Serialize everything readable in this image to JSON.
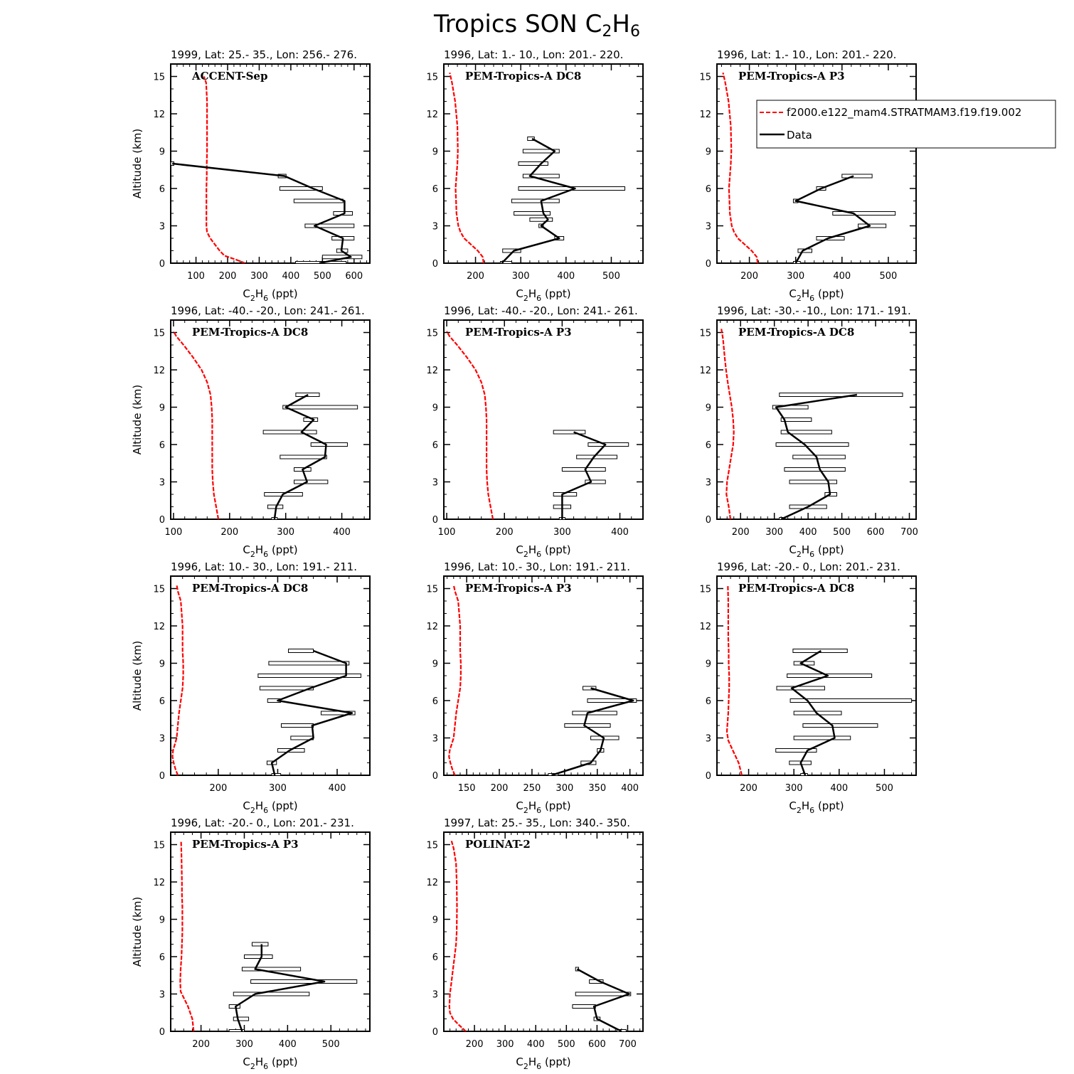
{
  "figure": {
    "title": "Tropics SON C",
    "title_sub_1": "2",
    "title_mid": "H",
    "title_sub_2": "6"
  },
  "axis_labels": {
    "ylabel": "Altitude (km)",
    "xlabel_pre": "C",
    "xlabel_sub_1": "2",
    "xlabel_mid": "H",
    "xlabel_sub_2": "6",
    "xlabel_post": " (ppt)"
  },
  "legend": {
    "placement": "upper-right of panel 3",
    "entries": [
      {
        "label": "f2000.e122_mam4.STRATMAM3.f19.f19.002",
        "color": "#ff0000",
        "style": "dashed"
      },
      {
        "label": "Data",
        "color": "#000000",
        "style": "solid"
      }
    ]
  },
  "chart_data": [
    {
      "type": "line",
      "subtitle": "1999, Lat: 25.- 35., Lon: 256.- 276.",
      "campaign": "ACCENT-Sep",
      "xlim": [
        20,
        650
      ],
      "ylim": [
        0,
        16
      ],
      "xticks": [
        100,
        200,
        300,
        400,
        500,
        600
      ],
      "yticks": [
        0,
        3,
        6,
        9,
        12,
        15
      ],
      "model": {
        "x": [
          255,
          225,
          190,
          175,
          160,
          145,
          135,
          133,
          133,
          133,
          133,
          134,
          134,
          135,
          135,
          135,
          132,
          125
        ],
        "y": [
          0,
          0.3,
          0.6,
          1,
          1.5,
          2,
          2.5,
          3,
          4,
          5,
          6,
          7,
          8,
          9,
          11,
          13,
          14.5,
          15
        ]
      },
      "data": {
        "y": [
          0,
          0.5,
          1,
          2,
          3,
          4,
          5,
          6,
          7,
          8
        ],
        "x": [
          490,
          590,
          560,
          565,
          475,
          570,
          570,
          470,
          380,
          25
        ],
        "lo": [
          415,
          500,
          545,
          530,
          445,
          535,
          410,
          365,
          360,
          20
        ],
        "hi": [
          575,
          625,
          580,
          600,
          600,
          595,
          565,
          500,
          385,
          30
        ]
      }
    },
    {
      "type": "line",
      "subtitle": "1996, Lat: 1.- 10., Lon: 201.- 220.",
      "campaign": "PEM-Tropics-A DC8",
      "xlim": [
        130,
        570
      ],
      "ylim": [
        0,
        16
      ],
      "xticks": [
        200,
        300,
        400,
        500
      ],
      "yticks": [
        0,
        3,
        6,
        9,
        12,
        15
      ],
      "model": {
        "x": [
          218,
          216,
          205,
          190,
          175,
          167,
          162,
          160,
          158,
          157,
          156,
          158,
          160,
          161,
          160,
          155,
          148,
          143
        ],
        "y": [
          0,
          0.5,
          1,
          1.5,
          2,
          2.5,
          3,
          3.5,
          4,
          5,
          6,
          7,
          8,
          9,
          11,
          13,
          14.5,
          15.3
        ]
      },
      "data": {
        "y": [
          0,
          1,
          2,
          3,
          3.5,
          4,
          5,
          6,
          7,
          8,
          9,
          10
        ],
        "x": [
          258,
          285,
          385,
          345,
          360,
          350,
          345,
          420,
          320,
          345,
          375,
          325
        ],
        "lo": [
          255,
          260,
          375,
          340,
          320,
          285,
          280,
          295,
          305,
          295,
          305,
          315
        ],
        "hi": [
          280,
          300,
          395,
          350,
          370,
          365,
          385,
          530,
          385,
          360,
          385,
          330
        ]
      }
    },
    {
      "type": "line",
      "subtitle": "1996, Lat: 1.- 10., Lon: 201.- 220.",
      "campaign": "PEM-Tropics-A P3",
      "xlim": [
        130,
        560
      ],
      "ylim": [
        0,
        16
      ],
      "xticks": [
        200,
        300,
        400,
        500
      ],
      "yticks": [
        0,
        3,
        6,
        9,
        12,
        15
      ],
      "model": {
        "x": [
          218,
          216,
          205,
          190,
          175,
          167,
          162,
          160,
          158,
          157,
          156,
          158,
          160,
          161,
          160,
          155,
          148,
          143
        ],
        "y": [
          0,
          0.5,
          1,
          1.5,
          2,
          2.5,
          3,
          3.5,
          4,
          5,
          6,
          7,
          8,
          9,
          11,
          13,
          14.5,
          15.3
        ]
      },
      "data": {
        "y": [
          0,
          1,
          2,
          3,
          4,
          5,
          6,
          7
        ],
        "x": [
          300,
          315,
          370,
          460,
          425,
          300,
          355,
          425
        ],
        "lo": [
          295,
          305,
          345,
          435,
          380,
          295,
          345,
          400
        ],
        "hi": [
          310,
          335,
          405,
          495,
          515,
          305,
          365,
          465
        ]
      }
    },
    {
      "type": "line",
      "subtitle": "1996, Lat: -40.- -20., Lon: 241.- 261.",
      "campaign": "PEM-Tropics-A DC8",
      "xlim": [
        95,
        450
      ],
      "ylim": [
        0,
        16
      ],
      "xticks": [
        100,
        200,
        300,
        400
      ],
      "yticks": [
        0,
        3,
        6,
        9,
        12,
        15
      ],
      "model": {
        "x": [
          180,
          176,
          172,
          170,
          169,
          169,
          169,
          169,
          169,
          168,
          166,
          160,
          150,
          135,
          118,
          105,
          100
        ],
        "y": [
          0,
          1,
          2,
          3,
          4,
          5,
          6,
          7,
          8,
          9,
          10,
          11,
          12,
          13,
          14,
          14.7,
          15.1
        ]
      },
      "data": {
        "y": [
          0,
          1,
          2,
          3,
          4,
          5,
          6,
          7,
          8,
          9,
          10
        ],
        "x": [
          280,
          283,
          295,
          338,
          330,
          370,
          372,
          328,
          350,
          300,
          340
        ],
        "lo": [
          275,
          268,
          262,
          315,
          315,
          290,
          345,
          260,
          332,
          295,
          318
        ],
        "hi": [
          285,
          295,
          330,
          375,
          345,
          373,
          410,
          355,
          357,
          428,
          360
        ]
      }
    },
    {
      "type": "line",
      "subtitle": "1996, Lat: -40.- -20., Lon: 241.- 261.",
      "campaign": "PEM-Tropics-A P3",
      "xlim": [
        95,
        440
      ],
      "ylim": [
        0,
        16
      ],
      "xticks": [
        100,
        200,
        300,
        400
      ],
      "yticks": [
        0,
        3,
        6,
        9,
        12,
        15
      ],
      "model": {
        "x": [
          180,
          176,
          172,
          170,
          169,
          169,
          169,
          169,
          169,
          168,
          166,
          160,
          150,
          135,
          118,
          105,
          100
        ],
        "y": [
          0,
          1,
          2,
          3,
          4,
          5,
          6,
          7,
          8,
          9,
          10,
          11,
          12,
          13,
          14,
          14.7,
          15.1
        ]
      },
      "data": {
        "y": [
          0,
          1,
          2,
          3,
          4,
          5,
          6,
          7
        ],
        "x": [
          300,
          300,
          300,
          350,
          340,
          355,
          375,
          320
        ],
        "lo": [
          295,
          285,
          285,
          340,
          300,
          325,
          345,
          285
        ],
        "hi": [
          305,
          315,
          325,
          375,
          375,
          395,
          415,
          340
        ]
      }
    },
    {
      "type": "line",
      "subtitle": "1996, Lat: -30.- -10., Lon: 171.- 191.",
      "campaign": "PEM-Tropics-A DC8",
      "xlim": [
        130,
        720
      ],
      "ylim": [
        0,
        16
      ],
      "xticks": [
        200,
        300,
        400,
        500,
        600,
        700
      ],
      "yticks": [
        0,
        3,
        6,
        9,
        12,
        15
      ],
      "model": {
        "x": [
          170,
          165,
          158,
          160,
          166,
          172,
          178,
          180,
          178,
          174,
          168,
          162,
          157,
          153,
          148,
          143
        ],
        "y": [
          0,
          1,
          2,
          3,
          4,
          5,
          6,
          7,
          8,
          9,
          10,
          11,
          12,
          13,
          14.5,
          15.3
        ]
      },
      "data": {
        "y": [
          0,
          1,
          2,
          3,
          4,
          5,
          6,
          7,
          8,
          9,
          10
        ],
        "x": [
          320,
          400,
          465,
          460,
          435,
          425,
          390,
          340,
          330,
          305,
          545
        ],
        "lo": [
          315,
          345,
          450,
          345,
          330,
          355,
          305,
          320,
          320,
          295,
          315
        ],
        "hi": [
          325,
          455,
          485,
          485,
          510,
          510,
          520,
          470,
          410,
          400,
          680
        ]
      }
    },
    {
      "type": "line",
      "subtitle": "1996, Lat: 10.- 30., Lon: 191.- 211.",
      "campaign": "PEM-Tropics-A DC8",
      "xlim": [
        120,
        455
      ],
      "ylim": [
        0,
        16
      ],
      "xticks": [
        200,
        300,
        400
      ],
      "yticks": [
        0,
        3,
        6,
        9,
        12,
        15
      ],
      "model": {
        "x": [
          132,
          128,
          125,
          123,
          124,
          127,
          130,
          132,
          134,
          137,
          140,
          141,
          141,
          140,
          140,
          137,
          132,
          130
        ],
        "y": [
          0,
          0.5,
          1,
          1.5,
          2,
          2.5,
          3,
          4,
          5,
          6,
          7,
          8,
          9,
          10,
          12,
          14,
          14.8,
          15.3
        ]
      },
      "data": {
        "y": [
          0,
          1,
          2,
          3,
          4,
          5,
          6,
          7,
          8,
          9,
          10
        ],
        "x": [
          295,
          290,
          320,
          360,
          358,
          425,
          300,
          355,
          415,
          415,
          360
        ],
        "lo": [
          290,
          282,
          300,
          322,
          306,
          373,
          283,
          270,
          267,
          285,
          318
        ],
        "hi": [
          305,
          298,
          345,
          360,
          360,
          430,
          305,
          360,
          440,
          420,
          360
        ]
      }
    },
    {
      "type": "line",
      "subtitle": "1996, Lat: 10.- 30., Lon: 191.- 211.",
      "campaign": "PEM-Tropics-A P3",
      "xlim": [
        115,
        420
      ],
      "ylim": [
        0,
        16
      ],
      "xticks": [
        150,
        200,
        250,
        300,
        350,
        400
      ],
      "yticks": [
        0,
        3,
        6,
        9,
        12,
        15
      ],
      "model": {
        "x": [
          132,
          128,
          125,
          123,
          124,
          127,
          130,
          132,
          134,
          137,
          140,
          141,
          141,
          140,
          140,
          137,
          132,
          130
        ],
        "y": [
          0,
          0.5,
          1,
          1.5,
          2,
          2.5,
          3,
          4,
          5,
          6,
          7,
          8,
          9,
          10,
          12,
          14,
          14.8,
          15.3
        ]
      },
      "data": {
        "y": [
          0,
          1,
          2,
          3,
          4,
          5,
          6,
          7
        ],
        "x": [
          280,
          340,
          355,
          360,
          330,
          335,
          405,
          340
        ],
        "lo": [
          275,
          325,
          350,
          340,
          300,
          312,
          335,
          328
        ],
        "hi": [
          290,
          348,
          360,
          383,
          370,
          380,
          410,
          348
        ]
      }
    },
    {
      "type": "line",
      "subtitle": "1996, Lat: -20.- 0., Lon: 201.- 231.",
      "campaign": "PEM-Tropics-A DC8",
      "xlim": [
        130,
        570
      ],
      "ylim": [
        0,
        16
      ],
      "xticks": [
        200,
        300,
        400,
        500
      ],
      "yticks": [
        0,
        3,
        6,
        9,
        12,
        15
      ],
      "model": {
        "x": [
          185,
          178,
          165,
          155,
          152,
          153,
          155,
          156,
          157,
          157,
          156,
          156,
          155,
          155,
          155,
          154
        ],
        "y": [
          0,
          1,
          2,
          2.8,
          3.5,
          4,
          5,
          6,
          7,
          8,
          9,
          10,
          11,
          12,
          14,
          15.3
        ]
      },
      "data": {
        "y": [
          0,
          1,
          2,
          3,
          4,
          5,
          6,
          7,
          8,
          9,
          10
        ],
        "x": [
          325,
          315,
          330,
          390,
          385,
          350,
          330,
          295,
          375,
          315,
          360
        ],
        "lo": [
          315,
          290,
          260,
          300,
          320,
          300,
          292,
          262,
          285,
          300,
          298
        ],
        "hi": [
          330,
          338,
          350,
          425,
          485,
          405,
          560,
          368,
          472,
          345,
          418
        ]
      }
    },
    {
      "type": "line",
      "subtitle": "1996, Lat: -20.- 0., Lon: 201.- 231.",
      "campaign": "PEM-Tropics-A P3",
      "xlim": [
        130,
        590
      ],
      "ylim": [
        0,
        16
      ],
      "xticks": [
        200,
        300,
        400,
        500
      ],
      "yticks": [
        0,
        3,
        6,
        9,
        12,
        15
      ],
      "model": {
        "x": [
          183,
          180,
          170,
          160,
          153,
          152,
          153,
          155,
          156,
          157,
          157,
          157,
          156,
          156,
          155,
          154
        ],
        "y": [
          0,
          1,
          2,
          2.7,
          3.2,
          4,
          5,
          6,
          7,
          8,
          9,
          10,
          11,
          12,
          14,
          15.3
        ]
      },
      "data": {
        "y": [
          0,
          1,
          2,
          3,
          4,
          5,
          6,
          7
        ],
        "x": [
          295,
          285,
          280,
          325,
          485,
          325,
          340,
          340
        ],
        "lo": [
          265,
          275,
          265,
          275,
          315,
          295,
          300,
          318
        ],
        "hi": [
          300,
          310,
          290,
          450,
          560,
          430,
          365,
          355
        ]
      }
    },
    {
      "type": "line",
      "subtitle": "1997, Lat: 25.- 35., Lon: 340.- 350.",
      "campaign": "POLINAT-2",
      "xlim": [
        100,
        750
      ],
      "ylim": [
        0,
        16
      ],
      "xticks": [
        200,
        300,
        400,
        500,
        600,
        700
      ],
      "yticks": [
        0,
        3,
        6,
        9,
        12,
        15
      ],
      "model": {
        "x": [
          172,
          150,
          130,
          120,
          118,
          120,
          125,
          130,
          135,
          140,
          142,
          143,
          142,
          140,
          132,
          125
        ],
        "y": [
          0,
          0.5,
          1,
          1.5,
          2,
          3,
          4,
          5,
          6,
          7,
          8,
          10,
          12,
          13.5,
          14.7,
          15.3
        ]
      },
      "data": {
        "y": [
          0,
          1,
          2,
          3,
          4,
          5
        ],
        "x": [
          680,
          600,
          590,
          705,
          610,
          535
        ],
        "lo": [
          665,
          590,
          520,
          530,
          575,
          530
        ],
        "hi": [
          695,
          610,
          595,
          710,
          620,
          540
        ]
      }
    }
  ]
}
